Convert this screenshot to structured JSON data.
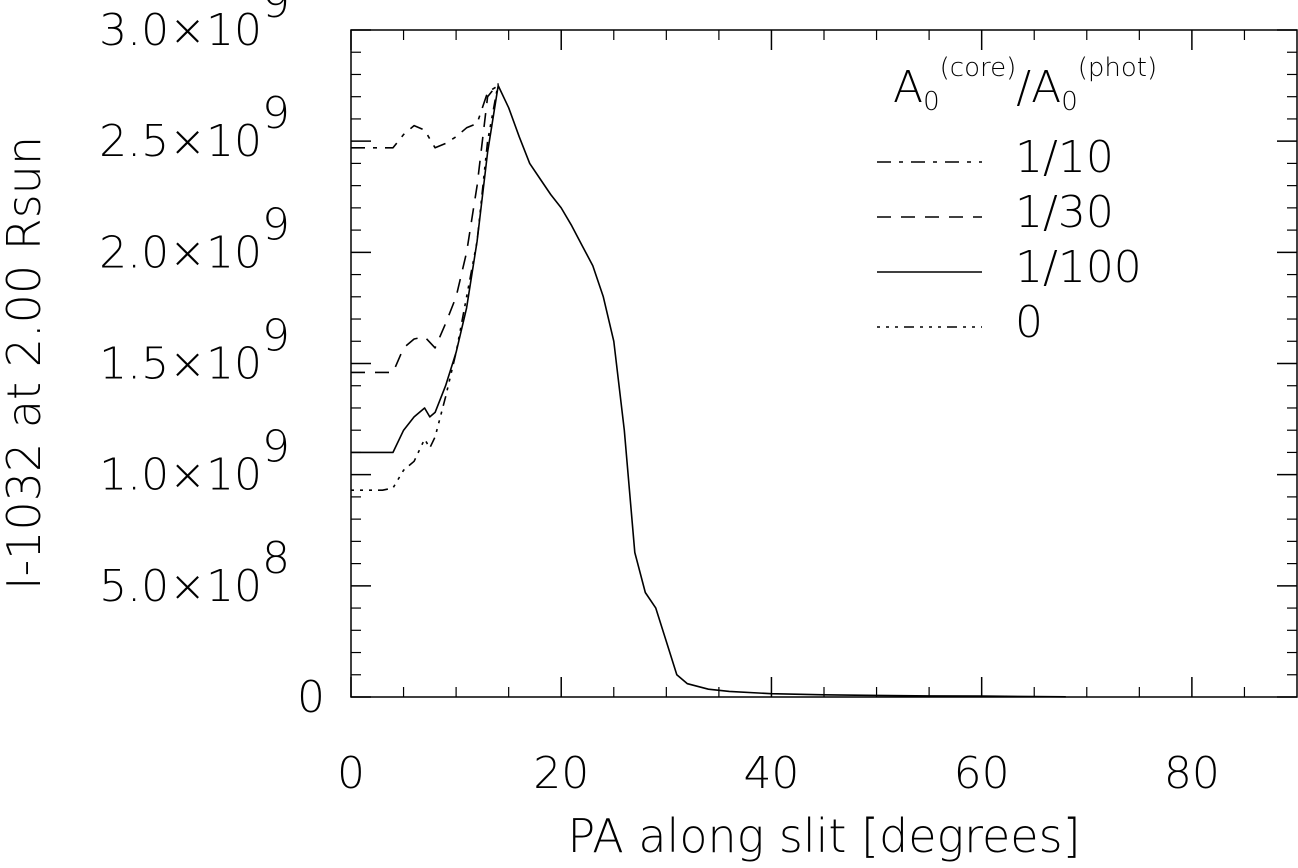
{
  "chart_data": {
    "type": "line",
    "xlabel": "PA along slit [degrees]",
    "ylabel": "I-1032  at 2.00 Rsun",
    "xlim": [
      0,
      90
    ],
    "ylim": [
      0,
      3000000000.0
    ],
    "grid": false,
    "legend_position": "top-right",
    "x_ticks": [
      {
        "value": 0,
        "label": "0"
      },
      {
        "value": 20,
        "label": "20"
      },
      {
        "value": 40,
        "label": "40"
      },
      {
        "value": 60,
        "label": "60"
      },
      {
        "value": 80,
        "label": "80"
      }
    ],
    "y_ticks": [
      {
        "value": 0,
        "mant": "0",
        "exp": ""
      },
      {
        "value": 500000000.0,
        "mant": "5.0×10",
        "exp": "8"
      },
      {
        "value": 1000000000.0,
        "mant": "1.0×10",
        "exp": "9"
      },
      {
        "value": 1500000000.0,
        "mant": "1.5×10",
        "exp": "9"
      },
      {
        "value": 2000000000.0,
        "mant": "2.0×10",
        "exp": "9"
      },
      {
        "value": 2500000000.0,
        "mant": "2.5×10",
        "exp": "9"
      },
      {
        "value": 3000000000.0,
        "mant": "3.0×10",
        "exp": "9"
      }
    ],
    "legend": {
      "title_a": "A",
      "title_sub": "0",
      "title_sup1": "(core)",
      "title_slash": "/",
      "title_sup2": "(phot)"
    },
    "series": [
      {
        "name": "1/10",
        "dash": "14,8,4,8",
        "points": [
          [
            0,
            2470000000.0
          ],
          [
            2,
            2470000000.0
          ],
          [
            4,
            2470000000.0
          ],
          [
            5,
            2530000000.0
          ],
          [
            6,
            2570000000.0
          ],
          [
            7,
            2550000000.0
          ],
          [
            8,
            2470000000.0
          ],
          [
            9,
            2490000000.0
          ],
          [
            10,
            2520000000.0
          ],
          [
            11,
            2560000000.0
          ],
          [
            12,
            2580000000.0
          ],
          [
            13,
            2720000000.0
          ],
          [
            14,
            2750000000.0
          ]
        ]
      },
      {
        "name": "1/30",
        "dash": "14,10",
        "points": [
          [
            0,
            1460000000.0
          ],
          [
            2,
            1460000000.0
          ],
          [
            4,
            1460000000.0
          ],
          [
            5,
            1570000000.0
          ],
          [
            6,
            1610000000.0
          ],
          [
            7,
            1620000000.0
          ],
          [
            8,
            1570000000.0
          ],
          [
            9,
            1680000000.0
          ],
          [
            10,
            1800000000.0
          ],
          [
            11,
            2000000000.0
          ],
          [
            12,
            2300000000.0
          ],
          [
            13,
            2700000000.0
          ],
          [
            14,
            2760000000.0
          ]
        ]
      },
      {
        "name": "1/100",
        "dash": "",
        "points": [
          [
            0,
            1100000000.0
          ],
          [
            2,
            1100000000.0
          ],
          [
            4,
            1100000000.0
          ],
          [
            5,
            1200000000.0
          ],
          [
            6,
            1260000000.0
          ],
          [
            7,
            1300000000.0
          ],
          [
            7.5,
            1260000000.0
          ],
          [
            8,
            1280000000.0
          ],
          [
            9,
            1400000000.0
          ],
          [
            10,
            1550000000.0
          ],
          [
            11,
            1750000000.0
          ],
          [
            12,
            2050000000.0
          ],
          [
            13,
            2450000000.0
          ],
          [
            14,
            2750000000.0
          ],
          [
            15,
            2650000000.0
          ],
          [
            16,
            2520000000.0
          ],
          [
            17,
            2400000000.0
          ],
          [
            18,
            2330000000.0
          ],
          [
            19,
            2260000000.0
          ],
          [
            20,
            2200000000.0
          ],
          [
            21,
            2120000000.0
          ],
          [
            22,
            2030000000.0
          ],
          [
            23,
            1940000000.0
          ],
          [
            24,
            1800000000.0
          ],
          [
            25,
            1600000000.0
          ],
          [
            26,
            1200000000.0
          ],
          [
            27,
            650000000.0
          ],
          [
            28,
            470000000.0
          ],
          [
            29,
            400000000.0
          ],
          [
            30,
            250000000.0
          ],
          [
            31,
            100000000.0
          ],
          [
            32,
            60000000.0
          ],
          [
            34,
            35000000.0
          ],
          [
            36,
            25000000.0
          ],
          [
            40,
            15000000.0
          ],
          [
            45,
            10000000.0
          ],
          [
            50,
            7000000.0
          ],
          [
            55,
            5000000.0
          ],
          [
            60,
            4000000.0
          ],
          [
            65,
            2000000.0
          ],
          [
            68,
            1000000.0
          ]
        ]
      },
      {
        "name": "0",
        "dash": "3,6,3,6,3,6,10,6",
        "points": [
          [
            0,
            930000000.0
          ],
          [
            2,
            930000000.0
          ],
          [
            3,
            930000000.0
          ],
          [
            4,
            940000000.0
          ],
          [
            5,
            1020000000.0
          ],
          [
            6,
            1060000000.0
          ],
          [
            7,
            1160000000.0
          ],
          [
            7.5,
            1120000000.0
          ],
          [
            8,
            1170000000.0
          ],
          [
            9,
            1350000000.0
          ],
          [
            10,
            1550000000.0
          ],
          [
            11,
            1800000000.0
          ],
          [
            12,
            2050000000.0
          ],
          [
            13,
            2500000000.0
          ],
          [
            14,
            2760000000.0
          ]
        ]
      }
    ]
  }
}
